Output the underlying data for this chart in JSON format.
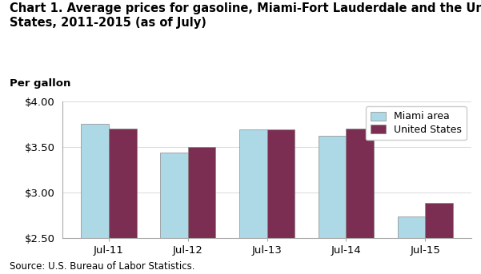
{
  "title_line1": "Chart 1. Average prices for gasoline, Miami-Fort Lauderdale and the United",
  "title_line2": "States, 2011-2015 (as of July)",
  "ylabel": "Per gallon",
  "source": "Source: U.S. Bureau of Labor Statistics.",
  "categories": [
    "Jul-11",
    "Jul-12",
    "Jul-13",
    "Jul-14",
    "Jul-15"
  ],
  "miami_values": [
    3.75,
    3.44,
    3.69,
    3.62,
    2.74
  ],
  "us_values": [
    3.7,
    3.5,
    3.69,
    3.7,
    2.89
  ],
  "miami_color": "#ADD8E6",
  "us_color": "#7B2D52",
  "ylim": [
    2.5,
    4.0
  ],
  "yticks": [
    2.5,
    3.0,
    3.5,
    4.0
  ],
  "legend_labels": [
    "Miami area",
    "United States"
  ],
  "bar_width": 0.35,
  "title_fontsize": 10.5,
  "tick_fontsize": 9.5,
  "label_fontsize": 9.5,
  "source_fontsize": 8.5
}
